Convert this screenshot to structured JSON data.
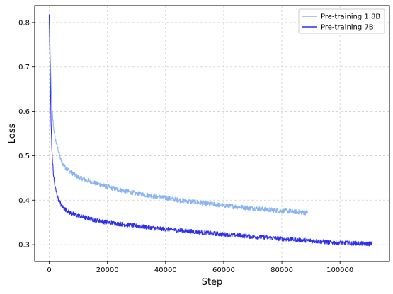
{
  "chart_data": {
    "type": "line",
    "title": "",
    "xlabel": "Step",
    "ylabel": "Loss",
    "xlim": [
      -5000,
      117000
    ],
    "ylim": [
      0.262,
      0.838
    ],
    "xticks": [
      0,
      20000,
      40000,
      60000,
      80000,
      100000
    ],
    "xtick_labels": [
      "0",
      "20000",
      "40000",
      "60000",
      "80000",
      "100000"
    ],
    "yticks": [
      0.3,
      0.4,
      0.5,
      0.6,
      0.7,
      0.8
    ],
    "ytick_labels": [
      "0.3",
      "0.4",
      "0.5",
      "0.6",
      "0.7",
      "0.8"
    ],
    "grid": true,
    "legend_position": "top-right",
    "series": [
      {
        "name": "Pre-training 1.8B",
        "color": "#8ab4f0",
        "x": [
          0,
          300,
          600,
          1000,
          1500,
          2000,
          3000,
          4000,
          5000,
          7000,
          10000,
          15000,
          20000,
          25000,
          30000,
          35000,
          40000,
          45000,
          50000,
          55000,
          60000,
          65000,
          70000,
          75000,
          80000,
          85000,
          89000
        ],
        "y": [
          0.818,
          0.74,
          0.66,
          0.6,
          0.565,
          0.54,
          0.515,
          0.49,
          0.478,
          0.465,
          0.452,
          0.44,
          0.43,
          0.422,
          0.415,
          0.41,
          0.405,
          0.4,
          0.396,
          0.392,
          0.388,
          0.385,
          0.382,
          0.379,
          0.376,
          0.374,
          0.372
        ]
      },
      {
        "name": "Pre-training 7B",
        "color": "#2f2ff0",
        "x": [
          0,
          300,
          600,
          1000,
          1500,
          2000,
          3000,
          4000,
          5000,
          7000,
          10000,
          15000,
          20000,
          25000,
          30000,
          35000,
          40000,
          45000,
          50000,
          55000,
          60000,
          65000,
          70000,
          75000,
          80000,
          85000,
          90000,
          95000,
          100000,
          105000,
          111000
        ],
        "y": [
          0.818,
          0.7,
          0.58,
          0.5,
          0.455,
          0.43,
          0.405,
          0.39,
          0.382,
          0.372,
          0.365,
          0.356,
          0.35,
          0.346,
          0.342,
          0.338,
          0.335,
          0.332,
          0.329,
          0.326,
          0.323,
          0.321,
          0.318,
          0.316,
          0.313,
          0.311,
          0.309,
          0.306,
          0.304,
          0.303,
          0.302
        ]
      }
    ]
  }
}
